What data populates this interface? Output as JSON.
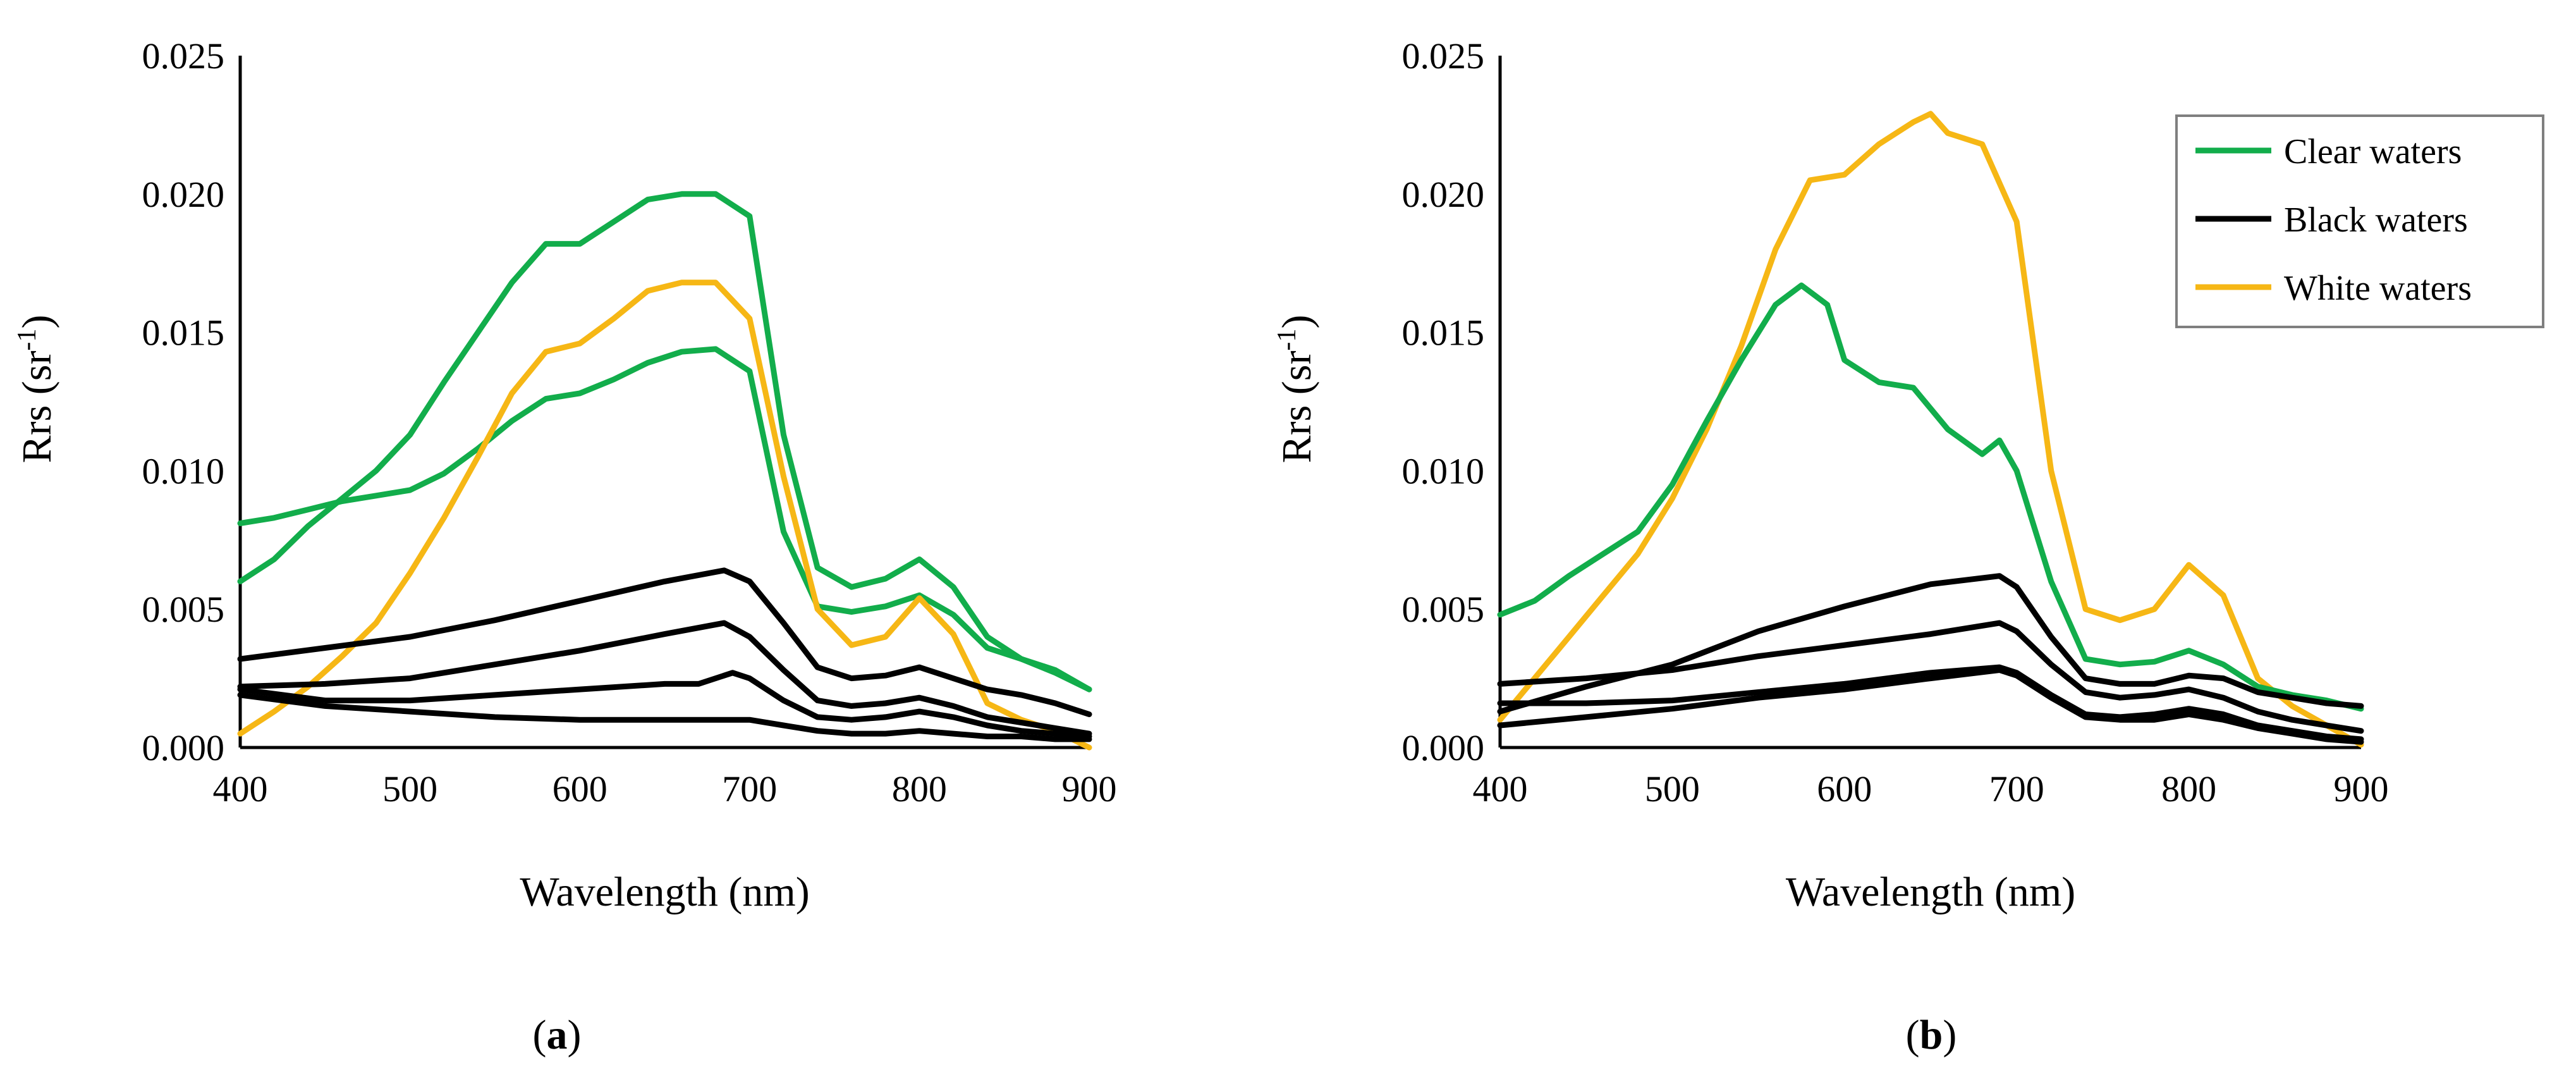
{
  "colors": {
    "clear": "#12ad4b",
    "black": "#000000",
    "white": "#f6b715",
    "axis": "#000000",
    "legend_border": "#7f7f7f"
  },
  "legend": {
    "entries": [
      {
        "label": "Clear waters",
        "color": "#12ad4b"
      },
      {
        "label": "Black waters",
        "color": "#000000"
      },
      {
        "label": "White waters",
        "color": "#f6b715"
      }
    ]
  },
  "chart_data": [
    {
      "type": "line",
      "panel_label": "a",
      "xlabel": "Wavelength (nm)",
      "ylabel_main": "Rrs (sr",
      "ylabel_sup": "-1",
      "ylabel_close": ")",
      "xlim": [
        400,
        900
      ],
      "ylim": [
        0,
        0.025
      ],
      "xticks": [
        400,
        500,
        600,
        700,
        800,
        900
      ],
      "yticks": [
        "0.000",
        "0.005",
        "0.010",
        "0.015",
        "0.020",
        "0.025"
      ],
      "series": [
        {
          "name": "Clear waters",
          "group": "clear",
          "x": [
            400,
            420,
            440,
            460,
            480,
            500,
            520,
            540,
            560,
            580,
            600,
            620,
            640,
            660,
            680,
            700,
            720,
            740,
            760,
            780,
            800,
            820,
            840,
            860,
            880,
            900
          ],
          "y": [
            0.0081,
            0.0083,
            0.0086,
            0.0089,
            0.0091,
            0.0093,
            0.0099,
            0.0108,
            0.0118,
            0.0126,
            0.0128,
            0.0133,
            0.0139,
            0.0143,
            0.0144,
            0.0136,
            0.0078,
            0.0051,
            0.0049,
            0.0051,
            0.0055,
            0.0048,
            0.0036,
            0.0032,
            0.0028,
            0.0021
          ]
        },
        {
          "name": "Clear waters",
          "group": "clear",
          "x": [
            400,
            420,
            440,
            460,
            480,
            500,
            520,
            540,
            560,
            580,
            600,
            620,
            640,
            660,
            680,
            700,
            720,
            740,
            760,
            780,
            800,
            820,
            840,
            860,
            880,
            900
          ],
          "y": [
            0.006,
            0.0068,
            0.008,
            0.009,
            0.01,
            0.0113,
            0.0132,
            0.015,
            0.0168,
            0.0182,
            0.0182,
            0.019,
            0.0198,
            0.02,
            0.02,
            0.0192,
            0.0113,
            0.0065,
            0.0058,
            0.0061,
            0.0068,
            0.0058,
            0.004,
            0.0032,
            0.0027,
            0.0021
          ]
        },
        {
          "name": "White waters",
          "group": "white",
          "x": [
            400,
            420,
            440,
            460,
            480,
            500,
            520,
            540,
            560,
            580,
            600,
            620,
            640,
            660,
            680,
            700,
            720,
            740,
            760,
            780,
            800,
            820,
            840,
            860,
            880,
            900
          ],
          "y": [
            0.0005,
            0.0013,
            0.0022,
            0.0033,
            0.0045,
            0.0063,
            0.0083,
            0.0105,
            0.0128,
            0.0143,
            0.0146,
            0.0155,
            0.0165,
            0.0168,
            0.0168,
            0.0155,
            0.0098,
            0.005,
            0.0037,
            0.004,
            0.0054,
            0.0041,
            0.0016,
            0.001,
            0.0006,
            0.0
          ]
        },
        {
          "name": "Black waters",
          "group": "black",
          "x": [
            400,
            450,
            500,
            550,
            600,
            650,
            685,
            700,
            720,
            740,
            760,
            780,
            800,
            820,
            840,
            860,
            880,
            900
          ],
          "y": [
            0.0032,
            0.0036,
            0.004,
            0.0046,
            0.0053,
            0.006,
            0.0064,
            0.006,
            0.0045,
            0.0029,
            0.0025,
            0.0026,
            0.0029,
            0.0025,
            0.0021,
            0.0019,
            0.0016,
            0.0012
          ]
        },
        {
          "name": "Black waters",
          "group": "black",
          "x": [
            400,
            450,
            500,
            550,
            600,
            650,
            685,
            700,
            720,
            740,
            760,
            780,
            800,
            820,
            840,
            860,
            880,
            900
          ],
          "y": [
            0.0022,
            0.0023,
            0.0025,
            0.003,
            0.0035,
            0.0041,
            0.0045,
            0.004,
            0.0028,
            0.0017,
            0.0015,
            0.0016,
            0.0018,
            0.0015,
            0.0011,
            0.0009,
            0.0007,
            0.0005
          ]
        },
        {
          "name": "Black waters",
          "group": "black",
          "x": [
            400,
            450,
            500,
            550,
            600,
            650,
            670,
            690,
            700,
            720,
            740,
            760,
            780,
            800,
            820,
            840,
            860,
            880,
            900
          ],
          "y": [
            0.0021,
            0.0017,
            0.0017,
            0.0019,
            0.0021,
            0.0023,
            0.0023,
            0.0027,
            0.0025,
            0.0017,
            0.0011,
            0.001,
            0.0011,
            0.0013,
            0.0011,
            0.0008,
            0.0006,
            0.0005,
            0.0004
          ]
        },
        {
          "name": "Black waters",
          "group": "black",
          "x": [
            400,
            450,
            500,
            550,
            600,
            650,
            700,
            720,
            740,
            760,
            780,
            800,
            820,
            840,
            860,
            880,
            900
          ],
          "y": [
            0.0019,
            0.0015,
            0.0013,
            0.0011,
            0.001,
            0.001,
            0.001,
            0.0008,
            0.0006,
            0.0005,
            0.0005,
            0.0006,
            0.0005,
            0.0004,
            0.0004,
            0.0003,
            0.0003
          ]
        }
      ]
    },
    {
      "type": "line",
      "panel_label": "b",
      "xlabel": "Wavelength (nm)",
      "ylabel_main": "Rrs (sr",
      "ylabel_sup": "-1",
      "ylabel_close": ")",
      "xlim": [
        400,
        900
      ],
      "ylim": [
        0,
        0.025
      ],
      "xticks": [
        400,
        500,
        600,
        700,
        800,
        900
      ],
      "yticks": [
        "0.000",
        "0.005",
        "0.010",
        "0.015",
        "0.020",
        "0.025"
      ],
      "series": [
        {
          "name": "White waters",
          "group": "white",
          "x": [
            400,
            420,
            440,
            460,
            480,
            500,
            520,
            540,
            560,
            580,
            600,
            620,
            640,
            650,
            660,
            680,
            700,
            720,
            740,
            760,
            780,
            800,
            820,
            840,
            860,
            880,
            900
          ],
          "y": [
            0.001,
            0.0025,
            0.004,
            0.0055,
            0.007,
            0.009,
            0.0115,
            0.0145,
            0.018,
            0.0205,
            0.0207,
            0.0218,
            0.0226,
            0.0229,
            0.0222,
            0.0218,
            0.019,
            0.01,
            0.005,
            0.0046,
            0.005,
            0.0066,
            0.0055,
            0.0025,
            0.0015,
            0.0008,
            0.0001
          ]
        },
        {
          "name": "Clear waters",
          "group": "clear",
          "x": [
            400,
            420,
            440,
            460,
            480,
            500,
            520,
            540,
            560,
            575,
            590,
            600,
            620,
            640,
            660,
            680,
            690,
            700,
            720,
            740,
            760,
            780,
            800,
            820,
            840,
            860,
            880,
            900
          ],
          "y": [
            0.0048,
            0.0053,
            0.0062,
            0.007,
            0.0078,
            0.0095,
            0.0118,
            0.014,
            0.016,
            0.0167,
            0.016,
            0.014,
            0.0132,
            0.013,
            0.0115,
            0.0106,
            0.0111,
            0.01,
            0.006,
            0.0032,
            0.003,
            0.0031,
            0.0035,
            0.003,
            0.0022,
            0.0019,
            0.0017,
            0.0014
          ]
        },
        {
          "name": "Black waters",
          "group": "black",
          "x": [
            400,
            450,
            500,
            550,
            600,
            650,
            690,
            700,
            720,
            740,
            760,
            780,
            800,
            820,
            840,
            860,
            880,
            900
          ],
          "y": [
            0.0013,
            0.0022,
            0.003,
            0.0042,
            0.0051,
            0.0059,
            0.0062,
            0.0058,
            0.004,
            0.0025,
            0.0023,
            0.0023,
            0.0026,
            0.0025,
            0.002,
            0.0018,
            0.0016,
            0.0015
          ]
        },
        {
          "name": "Black waters",
          "group": "black",
          "x": [
            400,
            450,
            500,
            550,
            600,
            650,
            690,
            700,
            720,
            740,
            760,
            780,
            800,
            820,
            840,
            860,
            880,
            900
          ],
          "y": [
            0.0023,
            0.0025,
            0.0028,
            0.0033,
            0.0037,
            0.0041,
            0.0045,
            0.0042,
            0.003,
            0.002,
            0.0018,
            0.0019,
            0.0021,
            0.0018,
            0.0013,
            0.001,
            0.0008,
            0.0006
          ]
        },
        {
          "name": "Black waters",
          "group": "black",
          "x": [
            400,
            450,
            500,
            550,
            600,
            650,
            690,
            700,
            720,
            740,
            760,
            780,
            800,
            820,
            840,
            860,
            880,
            900
          ],
          "y": [
            0.0016,
            0.0016,
            0.0017,
            0.002,
            0.0023,
            0.0027,
            0.0029,
            0.0027,
            0.0019,
            0.0012,
            0.0011,
            0.0012,
            0.0014,
            0.0012,
            0.0008,
            0.0006,
            0.0004,
            0.0003
          ]
        },
        {
          "name": "Black waters",
          "group": "black",
          "x": [
            400,
            450,
            500,
            550,
            600,
            650,
            690,
            700,
            720,
            740,
            760,
            780,
            800,
            820,
            840,
            860,
            880,
            900
          ],
          "y": [
            0.0008,
            0.0011,
            0.0014,
            0.0018,
            0.0021,
            0.0025,
            0.0028,
            0.0026,
            0.0018,
            0.0011,
            0.001,
            0.001,
            0.0012,
            0.001,
            0.0007,
            0.0005,
            0.0003,
            0.0002
          ]
        }
      ]
    }
  ]
}
